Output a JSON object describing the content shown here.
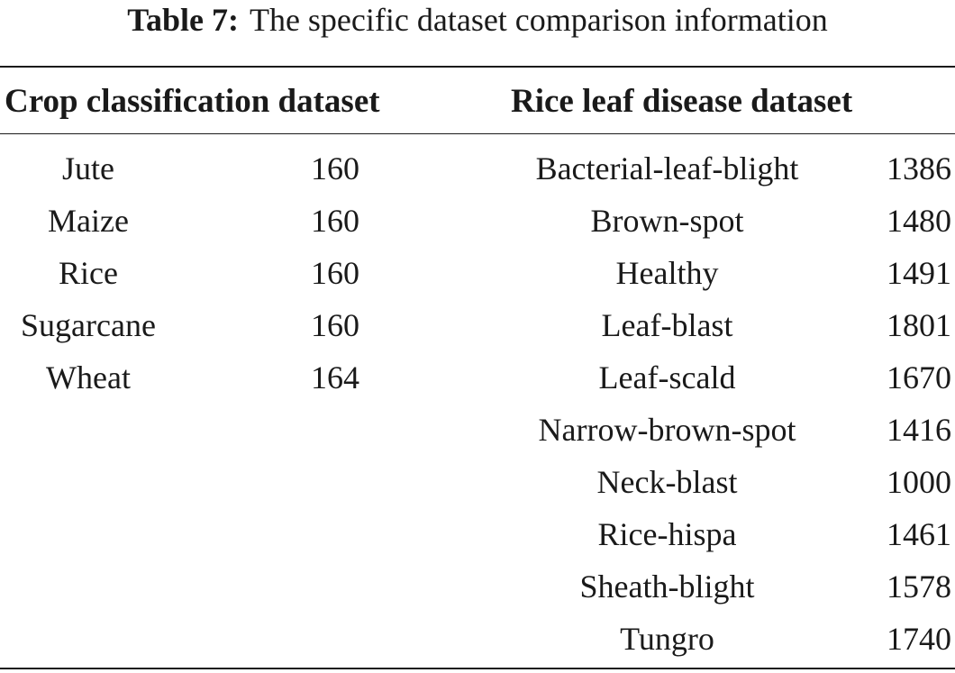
{
  "caption": {
    "label": "Table 7:",
    "text": "The specific dataset comparison information"
  },
  "headers": {
    "left": "Crop classification dataset",
    "right": "Rice leaf disease dataset"
  },
  "crop_rows": [
    {
      "name": "Jute",
      "count": "160"
    },
    {
      "name": "Maize",
      "count": "160"
    },
    {
      "name": "Rice",
      "count": "160"
    },
    {
      "name": "Sugarcane",
      "count": "160"
    },
    {
      "name": "Wheat",
      "count": "164"
    }
  ],
  "disease_rows": [
    {
      "name": "Bacterial-leaf-blight",
      "count": "1386"
    },
    {
      "name": "Brown-spot",
      "count": "1480"
    },
    {
      "name": "Healthy",
      "count": "1491"
    },
    {
      "name": "Leaf-blast",
      "count": "1801"
    },
    {
      "name": "Leaf-scald",
      "count": "1670"
    },
    {
      "name": "Narrow-brown-spot",
      "count": "1416"
    },
    {
      "name": "Neck-blast",
      "count": "1000"
    },
    {
      "name": "Rice-hispa",
      "count": "1461"
    },
    {
      "name": "Sheath-blight",
      "count": "1578"
    },
    {
      "name": "Tungro",
      "count": "1740"
    }
  ]
}
